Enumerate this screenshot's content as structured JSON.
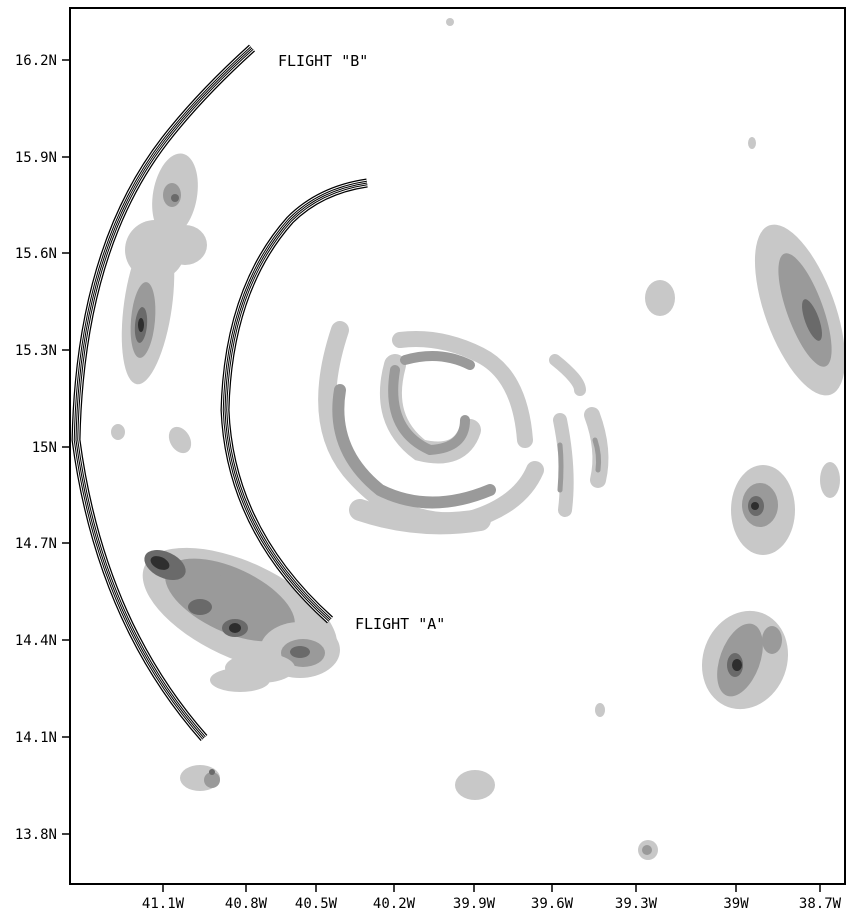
{
  "map": {
    "x_ticks": [
      "41.1W",
      "40.8W",
      "40.5W",
      "40.2W",
      "39.9W",
      "39.6W",
      "39.3W",
      "39W",
      "38.7W"
    ],
    "y_ticks": [
      "16.2N",
      "15.9N",
      "15.6N",
      "15.3N",
      "15N",
      "14.7N",
      "14.4N",
      "14.1N",
      "13.8N"
    ],
    "flight_labels": [
      "FLIGHT \"B\"",
      "FLIGHT \"A\""
    ],
    "shading_colors": [
      "#c8c8c8",
      "#9a9a9a",
      "#6a6a6a",
      "#2e2e2e"
    ],
    "contour_color": "#000000"
  }
}
